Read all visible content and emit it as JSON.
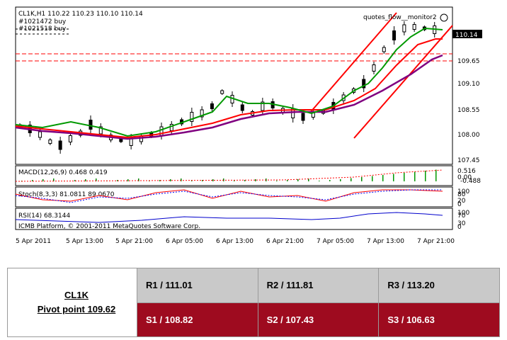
{
  "chart": {
    "symbol_header": "CL1K,H1  110.22 110.23 110.10 110.14",
    "order1": "#1021472 buy",
    "order2": "#1021518 buy",
    "indicator_label": "quotes_flow__monitor2",
    "current_price": "110.14",
    "price_ticks": [
      "109.65",
      "109.10",
      "108.55",
      "108.00",
      "107.45"
    ],
    "macd_label": "MACD(12,26,9) 0.468 0.419",
    "macd_ticks": [
      "0.516",
      "0.00",
      "-0.488"
    ],
    "stoch_label": "Stoch(8,3,3) 81.0811 89.0670",
    "stoch_ticks": [
      "100",
      "80",
      "20",
      "0"
    ],
    "rsi_label": "RSI(14) 68.3144",
    "rsi_ticks": [
      "100",
      "70",
      "30",
      "0"
    ],
    "copyright": "ICMB Platform, © 2001-2011 MetaQuotes Software Corp.",
    "time_ticks": [
      "5 Apr 2011",
      "5 Apr 13:00",
      "5 Apr 21:00",
      "6 Apr 05:00",
      "6 Apr 13:00",
      "6 Apr 21:00",
      "7 Apr 05:00",
      "7 Apr 13:00",
      "7 Apr 21:00"
    ]
  },
  "pivot_table": {
    "symbol": "CL1K",
    "pivot": "Pivot point 109.62",
    "resistances": [
      "R1 / 111.01",
      "R2 / 111.81",
      "R3 / 113.20"
    ],
    "supports": [
      "S1 / 108.82",
      "S2 /  107.43",
      "S3 /  106.63"
    ]
  },
  "colors": {
    "bull": "#000000",
    "bear": "#ffffff",
    "ma_fast": "#009900",
    "ma_mid": "#ff0000",
    "ma_slow": "#800080",
    "support_row": "#9e0b1f",
    "resistance_row": "#c9c9c9"
  }
}
